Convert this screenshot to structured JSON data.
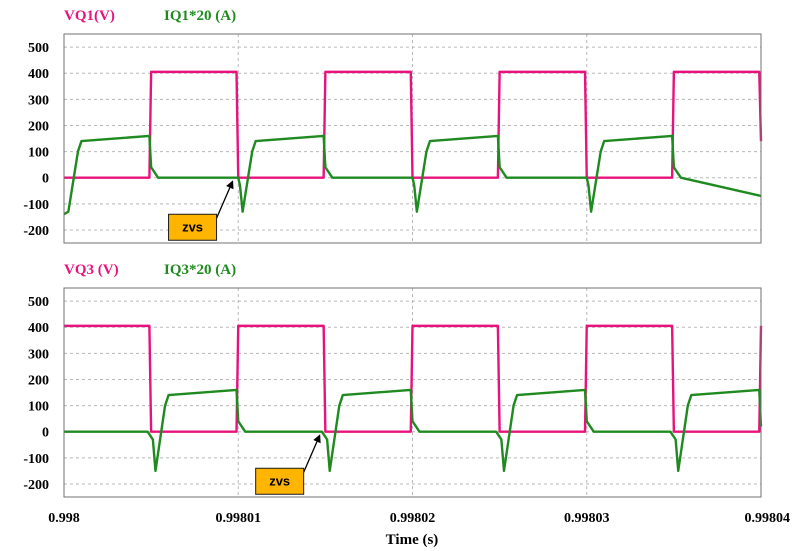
{
  "colors": {
    "voltage": "#e8127c",
    "current": "#1f8a1f",
    "grid": "#b8b8b8",
    "frame": "#707070",
    "callout_fill": "#ffb400",
    "callout_border": "#1a1a1a"
  },
  "xlabel": "Time (s)",
  "x_ticks": [
    "0.998",
    "0.99801",
    "0.99802",
    "0.99803",
    "0.99804"
  ],
  "chart_data": [
    {
      "type": "line",
      "title": "",
      "legend": [
        "VQ1(V)",
        "IQ1*20 (A)"
      ],
      "xlabel": "",
      "ylabel": "",
      "xlim": [
        0.998,
        0.99804
      ],
      "ylim": [
        -250,
        550
      ],
      "y_ticks": [
        500,
        400,
        300,
        200,
        100,
        0,
        -100,
        -200
      ],
      "grid": true,
      "annotation": {
        "text": "zvs",
        "x": 0.998006,
        "y": -140,
        "target_x": 0.9980097,
        "target_y": -10
      },
      "series": [
        {
          "name": "VQ1(V)",
          "color_key": "voltage",
          "x": [
            0.998,
            0.9980049,
            0.998005,
            0.9980099,
            0.99801,
            0.9980149,
            0.998015,
            0.9980199,
            0.99802,
            0.9980249,
            0.998025,
            0.9980299,
            0.99803,
            0.9980349,
            0.998035,
            0.9980399,
            0.99804
          ],
          "y": [
            0,
            0,
            405,
            405,
            0,
            0,
            405,
            405,
            0,
            0,
            405,
            405,
            0,
            0,
            405,
            405,
            140
          ]
        },
        {
          "name": "IQ1*20 (A)",
          "color_key": "current",
          "x": [
            0.998,
            0.99800025,
            0.9980008,
            0.998001,
            0.9980049,
            0.998005,
            0.9980054,
            0.99801,
            0.9980101,
            0.99801025,
            0.9980108,
            0.998011,
            0.9980149,
            0.998015,
            0.9980154,
            0.99802,
            0.9980201,
            0.99802025,
            0.9980208,
            0.998021,
            0.9980249,
            0.998025,
            0.9980254,
            0.99803,
            0.9980301,
            0.99803025,
            0.9980308,
            0.998031,
            0.9980349,
            0.998035,
            0.9980354,
            0.99804
          ],
          "y": [
            -140,
            -130,
            100,
            140,
            160,
            40,
            0,
            0,
            -30,
            -130,
            100,
            140,
            160,
            40,
            0,
            0,
            -30,
            -130,
            100,
            140,
            160,
            40,
            0,
            0,
            -30,
            -130,
            100,
            140,
            160,
            40,
            0,
            -70
          ]
        }
      ]
    },
    {
      "type": "line",
      "title": "",
      "legend": [
        "VQ3 (V)",
        "IQ3*20 (A)"
      ],
      "xlabel": "Time (s)",
      "ylabel": "",
      "xlim": [
        0.998,
        0.99804
      ],
      "ylim": [
        -250,
        550
      ],
      "y_ticks": [
        500,
        400,
        300,
        200,
        100,
        0,
        -100,
        -200
      ],
      "grid": true,
      "annotation": {
        "text": "zvs",
        "x": 0.998011,
        "y": -140,
        "target_x": 0.9980147,
        "target_y": -10
      },
      "series": [
        {
          "name": "VQ3 (V)",
          "color_key": "voltage",
          "x": [
            0.998,
            0.9980049,
            0.998005,
            0.9980099,
            0.99801,
            0.9980149,
            0.998015,
            0.9980199,
            0.99802,
            0.9980249,
            0.998025,
            0.9980299,
            0.99803,
            0.9980349,
            0.998035,
            0.9980399,
            0.99804
          ],
          "y": [
            405,
            405,
            0,
            0,
            405,
            405,
            0,
            0,
            405,
            405,
            0,
            0,
            405,
            405,
            0,
            0,
            405
          ]
        },
        {
          "name": "IQ3*20 (A)",
          "color_key": "current",
          "x": [
            0.998,
            0.9980048,
            0.9980051,
            0.99800525,
            0.9980058,
            0.998006,
            0.9980099,
            0.99801,
            0.9980104,
            0.9980148,
            0.9980151,
            0.99801525,
            0.9980158,
            0.998016,
            0.9980199,
            0.99802,
            0.9980204,
            0.9980248,
            0.9980251,
            0.99802525,
            0.9980258,
            0.998026,
            0.9980299,
            0.99803,
            0.9980304,
            0.9980348,
            0.9980351,
            0.99803525,
            0.9980358,
            0.998036,
            0.9980399,
            0.99804
          ],
          "y": [
            0,
            0,
            -30,
            -150,
            100,
            140,
            160,
            40,
            0,
            0,
            -30,
            -150,
            100,
            140,
            160,
            40,
            0,
            0,
            -30,
            -150,
            100,
            140,
            160,
            40,
            0,
            0,
            -30,
            -150,
            100,
            140,
            160,
            20
          ]
        }
      ]
    }
  ]
}
